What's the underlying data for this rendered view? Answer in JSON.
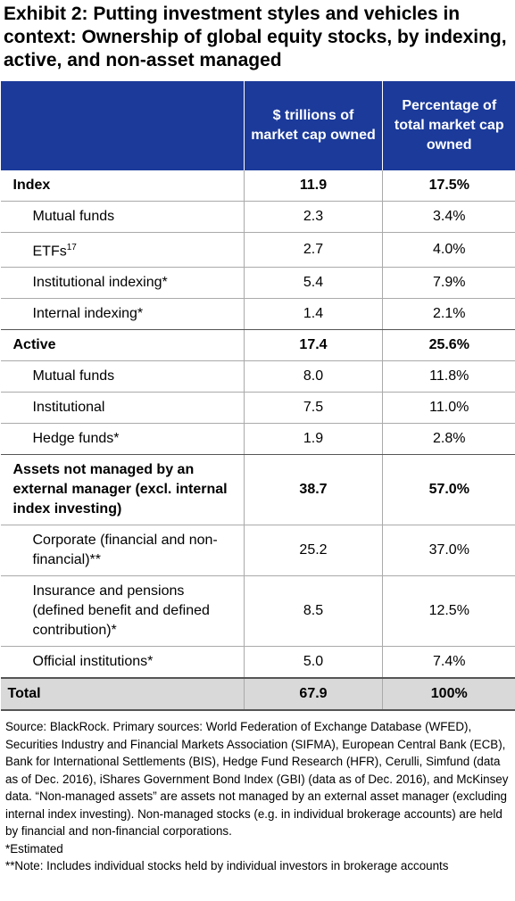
{
  "header": {
    "title": "Exhibit 2: Putting investment styles and vehicles in context: Ownership of global equity stocks, by indexing, active, and non-asset managed"
  },
  "table": {
    "columns": [
      "$ trillions of market cap owned",
      "Percentage of total market cap owned"
    ],
    "groups": [
      {
        "label": "Index",
        "trillions": "11.9",
        "percent": "17.5%",
        "items": [
          {
            "label": "Mutual funds",
            "trillions": "2.3",
            "percent": "3.4%"
          },
          {
            "label": "ETFs",
            "sup": "17",
            "trillions": "2.7",
            "percent": "4.0%"
          },
          {
            "label": "Institutional indexing*",
            "trillions": "5.4",
            "percent": "7.9%"
          },
          {
            "label": "Internal indexing*",
            "trillions": "1.4",
            "percent": "2.1%"
          }
        ]
      },
      {
        "label": "Active",
        "trillions": "17.4",
        "percent": "25.6%",
        "items": [
          {
            "label": "Mutual funds",
            "trillions": "8.0",
            "percent": "11.8%"
          },
          {
            "label": "Institutional",
            "trillions": "7.5",
            "percent": "11.0%"
          },
          {
            "label": "Hedge funds*",
            "trillions": "1.9",
            "percent": "2.8%"
          }
        ]
      },
      {
        "label": "Assets not managed by an external manager (excl. internal index investing)",
        "trillions": "38.7",
        "percent": "57.0%",
        "items": [
          {
            "label": "Corporate (financial and non-financial)**",
            "trillions": "25.2",
            "percent": "37.0%"
          },
          {
            "label": "Insurance and pensions (defined benefit and defined contribution)*",
            "trillions": "8.5",
            "percent": "12.5%"
          },
          {
            "label": "Official institutions*",
            "trillions": "5.0",
            "percent": "7.4%"
          }
        ]
      }
    ],
    "total": {
      "label": "Total",
      "trillions": "67.9",
      "percent": "100%"
    }
  },
  "footer": {
    "source": "Source: BlackRock.  Primary sources: World Federation of Exchange Database (WFED), Securities Industry and Financial Markets Association (SIFMA), European Central Bank (ECB), Bank for International Settlements (BIS), Hedge Fund Research (HFR), Cerulli, Simfund (data as of Dec. 2016), iShares Government Bond Index (GBI) (data as of Dec. 2016), and McKinsey data. “Non-managed assets” are assets not managed by an external asset manager (excluding internal index investing).  Non-managed stocks (e.g. in individual brokerage accounts) are held by financial and non-financial corporations.",
    "note1": "*Estimated",
    "note2": "**Note: Includes individual stocks held by individual investors in brokerage accounts"
  }
}
